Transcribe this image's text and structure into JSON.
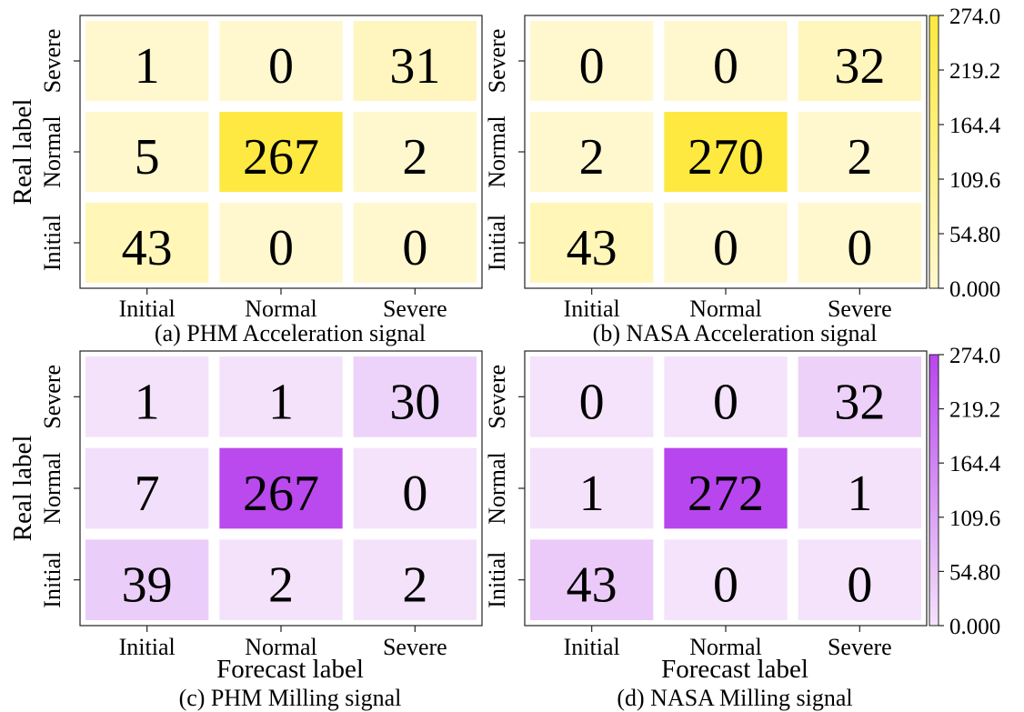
{
  "chart_data": [
    {
      "type": "heatmap",
      "title": "(a) PHM Acceleration signal",
      "xlabel": "",
      "ylabel": "Real label",
      "x_categories": [
        "Initial",
        "Normal",
        "Severe"
      ],
      "y_categories": [
        "Severe",
        "Normal",
        "Initial"
      ],
      "values": [
        [
          1,
          0,
          31
        ],
        [
          5,
          267,
          2
        ],
        [
          43,
          0,
          0
        ]
      ],
      "colormap": "yellow",
      "color_range": [
        0,
        274
      ]
    },
    {
      "type": "heatmap",
      "title": "(b) NASA Acceleration signal",
      "xlabel": "",
      "ylabel": "",
      "x_categories": [
        "Initial",
        "Normal",
        "Severe"
      ],
      "y_categories": [
        "Severe",
        "Normal",
        "Initial"
      ],
      "values": [
        [
          0,
          0,
          32
        ],
        [
          2,
          270,
          2
        ],
        [
          43,
          0,
          0
        ]
      ],
      "colormap": "yellow",
      "color_range": [
        0,
        274
      ]
    },
    {
      "type": "heatmap",
      "title": "(c) PHM Milling signal",
      "xlabel": "Forecast label",
      "ylabel": "Real label",
      "x_categories": [
        "Initial",
        "Normal",
        "Severe"
      ],
      "y_categories": [
        "Severe",
        "Normal",
        "Initial"
      ],
      "values": [
        [
          1,
          1,
          30
        ],
        [
          7,
          267,
          0
        ],
        [
          39,
          2,
          2
        ]
      ],
      "colormap": "purple",
      "color_range": [
        0,
        274
      ]
    },
    {
      "type": "heatmap",
      "title": "(d) NASA Milling signal",
      "xlabel": "Forecast label",
      "ylabel": "",
      "x_categories": [
        "Initial",
        "Normal",
        "Severe"
      ],
      "y_categories": [
        "Severe",
        "Normal",
        "Initial"
      ],
      "values": [
        [
          0,
          0,
          32
        ],
        [
          1,
          272,
          1
        ],
        [
          43,
          0,
          0
        ]
      ],
      "colormap": "purple",
      "color_range": [
        0,
        274
      ]
    }
  ],
  "colorbars": [
    {
      "colormap": "yellow",
      "ticks": [
        "274.0",
        "219.2",
        "164.4",
        "109.6",
        "54.80",
        "0.000"
      ]
    },
    {
      "colormap": "purple",
      "ticks": [
        "274.0",
        "219.2",
        "164.4",
        "109.6",
        "54.80",
        "0.000"
      ]
    }
  ],
  "colors": {
    "yellow_low": "#fff8cf",
    "yellow_high": "#fde93e",
    "purple_low": "#f4e3fb",
    "purple_high": "#b845ee"
  }
}
